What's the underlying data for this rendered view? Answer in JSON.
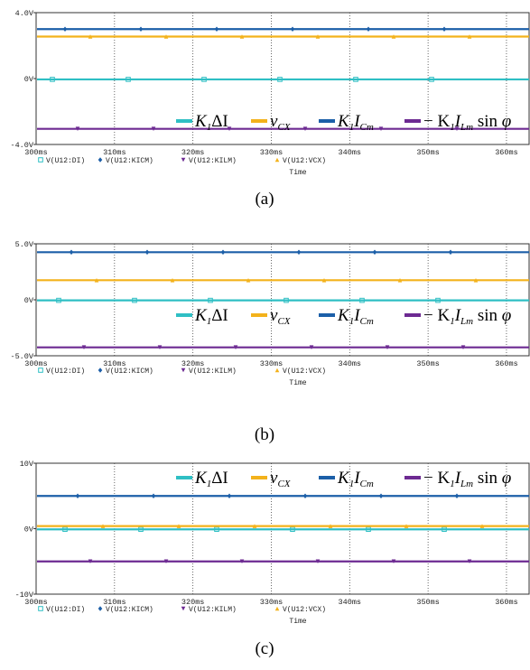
{
  "chart_data": [
    {
      "type": "line",
      "caption": "(a)",
      "xlabel": "Time",
      "x_ticks": [
        "300ms",
        "310ms",
        "320ms",
        "330ms",
        "340ms",
        "350ms",
        "360ms"
      ],
      "xlim": [
        300,
        363
      ],
      "y_ticks": [
        {
          "value": 4,
          "label": "4.0V"
        },
        {
          "value": 0,
          "label": "0V"
        },
        {
          "value": -4,
          "label": "-4.0V"
        }
      ],
      "ylim": [
        -4,
        4
      ],
      "series": [
        {
          "name": "V(U12:DI)",
          "legend": "K1ΔI",
          "color": "#2fbfc4",
          "marker": "square",
          "value": -0.05
        },
        {
          "name": "V(U12:KICM)",
          "legend": "K1ICm",
          "color": "#1c5fa8",
          "marker": "diamond",
          "value": 3.0
        },
        {
          "name": "V(U12:KILM)",
          "legend": "−K1ILm sin φ",
          "color": "#6d2a92",
          "marker": "triangle-down",
          "value": -3.05
        },
        {
          "name": "V(U12:VCX)",
          "legend": "vCX",
          "color": "#f3b21b",
          "marker": "triangle-up",
          "value": 2.55
        }
      ]
    },
    {
      "type": "line",
      "caption": "(b)",
      "xlabel": "Time",
      "x_ticks": [
        "300ms",
        "310ms",
        "320ms",
        "330ms",
        "340ms",
        "350ms",
        "360ms"
      ],
      "xlim": [
        300,
        363
      ],
      "y_ticks": [
        {
          "value": 5,
          "label": "5.0V"
        },
        {
          "value": 0,
          "label": "0V"
        },
        {
          "value": -5,
          "label": "-5.0V"
        }
      ],
      "ylim": [
        -5,
        5
      ],
      "series": [
        {
          "name": "V(U12:DI)",
          "legend": "K1ΔI",
          "color": "#2fbfc4",
          "marker": "square",
          "value": -0.05
        },
        {
          "name": "V(U12:KICM)",
          "legend": "K1ICm",
          "color": "#1c5fa8",
          "marker": "diamond",
          "value": 4.25
        },
        {
          "name": "V(U12:KILM)",
          "legend": "−K1ILm sin φ",
          "color": "#6d2a92",
          "marker": "triangle-down",
          "value": -4.25
        },
        {
          "name": "V(U12:VCX)",
          "legend": "vCX",
          "color": "#f3b21b",
          "marker": "triangle-up",
          "value": 1.75
        }
      ]
    },
    {
      "type": "line",
      "caption": "(c)",
      "xlabel": "Time",
      "x_ticks": [
        "300ms",
        "310ms",
        "320ms",
        "330ms",
        "340ms",
        "350ms",
        "360ms"
      ],
      "xlim": [
        300,
        363
      ],
      "y_ticks": [
        {
          "value": 10,
          "label": "10V"
        },
        {
          "value": 0,
          "label": "0V"
        },
        {
          "value": -10,
          "label": "-10V"
        }
      ],
      "ylim": [
        -10,
        10
      ],
      "series": [
        {
          "name": "V(U12:DI)",
          "legend": "K1ΔI",
          "color": "#2fbfc4",
          "marker": "square",
          "value": -0.1
        },
        {
          "name": "V(U12:KICM)",
          "legend": "K1ICm",
          "color": "#1c5fa8",
          "marker": "diamond",
          "value": 5.0
        },
        {
          "name": "V(U12:KILM)",
          "legend": "−K1ILm sin φ",
          "color": "#6d2a92",
          "marker": "triangle-down",
          "value": -5.0
        },
        {
          "name": "V(U12:VCX)",
          "legend": "vCX",
          "color": "#f3b21b",
          "marker": "triangle-up",
          "value": 0.4
        }
      ]
    }
  ]
}
